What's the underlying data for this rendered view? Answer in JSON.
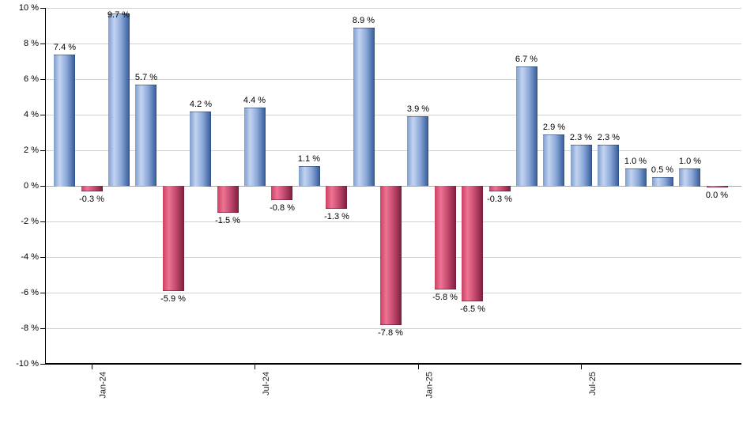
{
  "chart_data": {
    "type": "bar",
    "title": "",
    "unit": "%",
    "legend": "none",
    "grid": true,
    "ylim": [
      -10,
      10
    ],
    "bars": [
      {
        "value": 7.4,
        "label": "7.4 %"
      },
      {
        "value": -0.3,
        "label": "-0.3 %"
      },
      {
        "value": 9.7,
        "label": "9.7 %"
      },
      {
        "value": 5.7,
        "label": "5.7 %"
      },
      {
        "value": -5.9,
        "label": "-5.9 %"
      },
      {
        "value": 4.2,
        "label": "4.2 %"
      },
      {
        "value": -1.5,
        "label": "-1.5 %"
      },
      {
        "value": 4.4,
        "label": "4.4 %"
      },
      {
        "value": -0.8,
        "label": "-0.8 %"
      },
      {
        "value": 1.1,
        "label": "1.1 %"
      },
      {
        "value": -1.3,
        "label": "-1.3 %"
      },
      {
        "value": 8.9,
        "label": "8.9 %"
      },
      {
        "value": -7.8,
        "label": "-7.8 %"
      },
      {
        "value": 3.9,
        "label": "3.9 %"
      },
      {
        "value": -5.8,
        "label": "-5.8 %"
      },
      {
        "value": -6.5,
        "label": "-6.5 %"
      },
      {
        "value": -0.3,
        "label": "-0.3 %"
      },
      {
        "value": 6.7,
        "label": "6.7 %"
      },
      {
        "value": 2.9,
        "label": "2.9 %"
      },
      {
        "value": 2.3,
        "label": "2.3 %"
      },
      {
        "value": 2.3,
        "label": "2.3 %"
      },
      {
        "value": 1.0,
        "label": "1.0 %"
      },
      {
        "value": 0.5,
        "label": "0.5 %"
      },
      {
        "value": 1.0,
        "label": "1.0 %"
      },
      {
        "value": 0.0,
        "label": "0.0 %"
      }
    ],
    "x_ticks": [
      {
        "label": "Jan-24",
        "bar_index": 1
      },
      {
        "label": "Jul-24",
        "bar_index": 7
      },
      {
        "label": "Jan-25",
        "bar_index": 13
      },
      {
        "label": "Jul-25",
        "bar_index": 19
      }
    ],
    "y_ticks": [
      {
        "value": 10,
        "label": "10 %"
      },
      {
        "value": 8,
        "label": "8 %"
      },
      {
        "value": 6,
        "label": "6 %"
      },
      {
        "value": 4,
        "label": "4 %"
      },
      {
        "value": 2,
        "label": "2 %"
      },
      {
        "value": 0,
        "label": "0 %"
      },
      {
        "value": -2,
        "label": "-2 %"
      },
      {
        "value": -4,
        "label": "-4 %"
      },
      {
        "value": -6,
        "label": "-6 %"
      },
      {
        "value": -8,
        "label": "-8 %"
      },
      {
        "value": -10,
        "label": "-10 %"
      }
    ],
    "colors": {
      "positive_gradient": [
        "#7f9dce",
        "#c2d4f0",
        "#8ca9d9",
        "#3d619e",
        "#2b4876"
      ],
      "negative_gradient": [
        "#cb4062",
        "#ee7394",
        "#c54b70",
        "#832341",
        "#6d1b35"
      ],
      "gridline": "#d2d2d2",
      "zero_line": "#a9a9a9",
      "axis": "#000000",
      "label_text": "#000000"
    }
  }
}
